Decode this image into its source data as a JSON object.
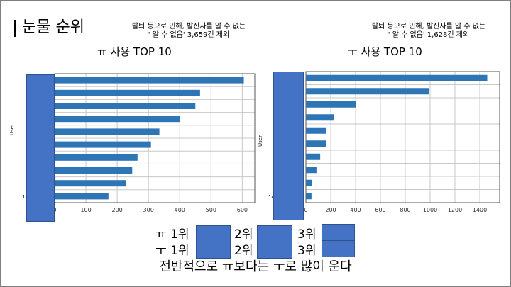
{
  "title": "눈물 순위",
  "charts": [
    {
      "note_line1": "탈퇴 등으로 인해, 발신자를 알 수 없는",
      "note_line2": "' 알 수 없음' 3,659건 제외",
      "heading": "ㅠ 사용 TOP 10",
      "ylabel": "User",
      "ytick_visible": "14"
    },
    {
      "note_line1": "탈퇴 등으로 인해, 발신자를 알 수 없는",
      "note_line2": "' 알 수 없음' 1,628건 제외",
      "heading": "ㅜ 사용 TOP 10",
      "ylabel": "User",
      "ytick_visible": "14"
    }
  ],
  "chart_data": [
    {
      "type": "bar",
      "orientation": "horizontal",
      "title": "ㅠ 사용 TOP 10",
      "ylabel": "User",
      "values": [
        605,
        465,
        450,
        400,
        335,
        308,
        265,
        248,
        228,
        172
      ],
      "xlim": [
        0,
        640
      ],
      "xticks": [
        0,
        100,
        200,
        300,
        400,
        500,
        600
      ],
      "grid": true
    },
    {
      "type": "bar",
      "orientation": "horizontal",
      "title": "ㅜ 사용 TOP 10",
      "ylabel": "User",
      "values": [
        1460,
        990,
        405,
        225,
        165,
        162,
        115,
        85,
        50,
        45
      ],
      "xlim": [
        0,
        1560
      ],
      "xticks": [
        0,
        200,
        400,
        600,
        800,
        1000,
        1200,
        1400
      ],
      "grid": true
    }
  ],
  "colors": {
    "bar": "#2e75b6",
    "cover": "#4472c4"
  },
  "ranking": {
    "yu_row": [
      "ㅠ 1위",
      "2위",
      "3위"
    ],
    "u_row": [
      "ㅜ 1위",
      "2위",
      "3위"
    ]
  },
  "summary": "전반적으로 ㅠ보다는 ㅜ로 많이 운다"
}
